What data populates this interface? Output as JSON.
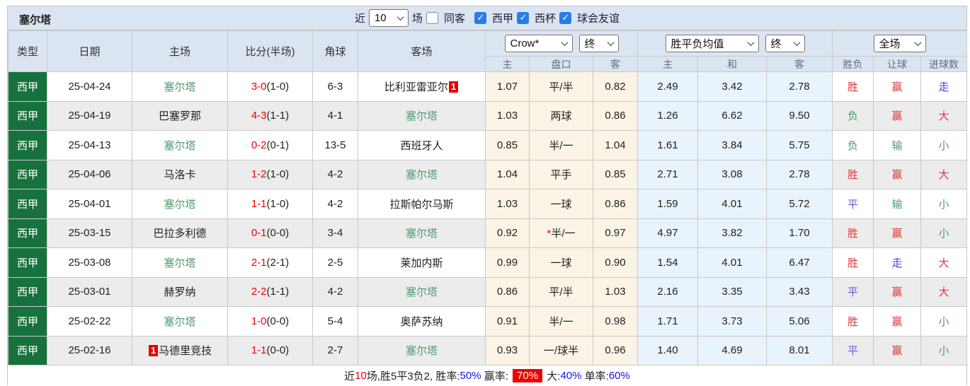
{
  "title": "塞尔塔",
  "controls": {
    "recent_label": "近",
    "recent_value": "10",
    "matches_label": "场",
    "same_venue": {
      "label": "同客",
      "checked": false
    },
    "leagues": [
      {
        "label": "西甲",
        "checked": true
      },
      {
        "label": "西杯",
        "checked": true
      },
      {
        "label": "球会友谊",
        "checked": true
      }
    ]
  },
  "selectors": {
    "odds_provider": "Crow*",
    "odds_time": "终",
    "euro_provider": "胜平负均值",
    "euro_time": "终",
    "scope": "全场"
  },
  "columns": {
    "type": "类型",
    "date": "日期",
    "home": "主场",
    "score": "比分(半场)",
    "corner": "角球",
    "away": "客场",
    "asia_home": "主",
    "asia_line": "盘口",
    "asia_away": "客",
    "euro_home": "主",
    "euro_draw": "和",
    "euro_away": "客",
    "outcome": "胜负",
    "handicap_result": "让球",
    "goals_result": "进球数"
  },
  "accent_colors": {
    "league_badge_green": "#17713c",
    "header_blue": "#dbe5f1",
    "asia_cream": "#fbf4e6",
    "euro_blue": "#e9f3fb",
    "score_red": "#ee0000",
    "celta_green": "#4e9d6e"
  },
  "rows": [
    {
      "league": "西甲",
      "date": "25-04-24",
      "home": {
        "name": "塞尔塔",
        "celta": true
      },
      "score": "3-0",
      "half": "(1-0)",
      "corner": "6-3",
      "away": {
        "name": "比利亚雷亚尔",
        "badge": "1",
        "badge_pos": "after"
      },
      "asia": {
        "home": "1.07",
        "line": "平/半",
        "star": false,
        "away": "0.82"
      },
      "euro": {
        "home": "2.49",
        "draw": "3.42",
        "away": "2.78"
      },
      "result": {
        "outcome": [
          "胜",
          "red"
        ],
        "handicap": [
          "赢",
          "red"
        ],
        "goals": [
          "走",
          "blue"
        ]
      }
    },
    {
      "league": "西甲",
      "date": "25-04-19",
      "home": {
        "name": "巴塞罗那"
      },
      "score": "4-3",
      "half": "(1-1)",
      "corner": "4-1",
      "away": {
        "name": "塞尔塔",
        "celta": true
      },
      "asia": {
        "home": "1.03",
        "line": "两球",
        "star": false,
        "away": "0.86"
      },
      "euro": {
        "home": "1.26",
        "draw": "6.62",
        "away": "9.50"
      },
      "result": {
        "outcome": [
          "负",
          "green"
        ],
        "handicap": [
          "赢",
          "red"
        ],
        "goals": [
          "大",
          "red"
        ]
      }
    },
    {
      "league": "西甲",
      "date": "25-04-13",
      "home": {
        "name": "塞尔塔",
        "celta": true
      },
      "score": "0-2",
      "half": "(0-1)",
      "corner": "13-5",
      "away": {
        "name": "西班牙人"
      },
      "asia": {
        "home": "0.85",
        "line": "半/一",
        "star": false,
        "away": "1.04"
      },
      "euro": {
        "home": "1.61",
        "draw": "3.84",
        "away": "5.75"
      },
      "result": {
        "outcome": [
          "负",
          "green"
        ],
        "handicap": [
          "输",
          "green"
        ],
        "goals": [
          "小",
          "green"
        ]
      }
    },
    {
      "league": "西甲",
      "date": "25-04-06",
      "home": {
        "name": "马洛卡"
      },
      "score": "1-2",
      "half": "(1-0)",
      "corner": "4-2",
      "away": {
        "name": "塞尔塔",
        "celta": true
      },
      "asia": {
        "home": "1.04",
        "line": "平手",
        "star": false,
        "away": "0.85"
      },
      "euro": {
        "home": "2.71",
        "draw": "3.08",
        "away": "2.78"
      },
      "result": {
        "outcome": [
          "胜",
          "red"
        ],
        "handicap": [
          "赢",
          "red"
        ],
        "goals": [
          "大",
          "red"
        ]
      }
    },
    {
      "league": "西甲",
      "date": "25-04-01",
      "home": {
        "name": "塞尔塔",
        "celta": true
      },
      "score": "1-1",
      "half": "(1-0)",
      "corner": "4-2",
      "away": {
        "name": "拉斯帕尔马斯"
      },
      "asia": {
        "home": "1.03",
        "line": "一球",
        "star": false,
        "away": "0.86"
      },
      "euro": {
        "home": "1.59",
        "draw": "4.01",
        "away": "5.72"
      },
      "result": {
        "outcome": [
          "平",
          "purple"
        ],
        "handicap": [
          "输",
          "green"
        ],
        "goals": [
          "小",
          "green"
        ]
      }
    },
    {
      "league": "西甲",
      "date": "25-03-15",
      "home": {
        "name": "巴拉多利德"
      },
      "score": "0-1",
      "half": "(0-0)",
      "corner": "3-4",
      "away": {
        "name": "塞尔塔",
        "celta": true
      },
      "asia": {
        "home": "0.92",
        "line": "半/一",
        "star": true,
        "away": "0.97"
      },
      "euro": {
        "home": "4.97",
        "draw": "3.82",
        "away": "1.70"
      },
      "result": {
        "outcome": [
          "胜",
          "red"
        ],
        "handicap": [
          "赢",
          "red"
        ],
        "goals": [
          "小",
          "green"
        ]
      }
    },
    {
      "league": "西甲",
      "date": "25-03-08",
      "home": {
        "name": "塞尔塔",
        "celta": true
      },
      "score": "2-1",
      "half": "(2-1)",
      "corner": "2-5",
      "away": {
        "name": "莱加内斯"
      },
      "asia": {
        "home": "0.99",
        "line": "一球",
        "star": false,
        "away": "0.90"
      },
      "euro": {
        "home": "1.54",
        "draw": "4.01",
        "away": "6.47"
      },
      "result": {
        "outcome": [
          "胜",
          "red"
        ],
        "handicap": [
          "走",
          "blue"
        ],
        "goals": [
          "大",
          "red"
        ]
      }
    },
    {
      "league": "西甲",
      "date": "25-03-01",
      "home": {
        "name": "赫罗纳"
      },
      "score": "2-2",
      "half": "(1-1)",
      "corner": "4-2",
      "away": {
        "name": "塞尔塔",
        "celta": true
      },
      "asia": {
        "home": "0.86",
        "line": "平/半",
        "star": false,
        "away": "1.03"
      },
      "euro": {
        "home": "2.16",
        "draw": "3.35",
        "away": "3.43"
      },
      "result": {
        "outcome": [
          "平",
          "purple"
        ],
        "handicap": [
          "赢",
          "red"
        ],
        "goals": [
          "大",
          "red"
        ]
      }
    },
    {
      "league": "西甲",
      "date": "25-02-22",
      "home": {
        "name": "塞尔塔",
        "celta": true
      },
      "score": "1-0",
      "half": "(0-0)",
      "corner": "5-4",
      "away": {
        "name": "奥萨苏纳"
      },
      "asia": {
        "home": "0.91",
        "line": "半/一",
        "star": false,
        "away": "0.98"
      },
      "euro": {
        "home": "1.71",
        "draw": "3.73",
        "away": "5.06"
      },
      "result": {
        "outcome": [
          "胜",
          "red"
        ],
        "handicap": [
          "赢",
          "red"
        ],
        "goals": [
          "小",
          "green"
        ]
      }
    },
    {
      "league": "西甲",
      "date": "25-02-16",
      "home": {
        "name": "马德里竞技",
        "badge": "1",
        "badge_pos": "before"
      },
      "score": "1-1",
      "half": "(0-0)",
      "corner": "2-7",
      "away": {
        "name": "塞尔塔",
        "celta": true
      },
      "asia": {
        "home": "0.93",
        "line": "一/球半",
        "star": false,
        "away": "0.96"
      },
      "euro": {
        "home": "1.40",
        "draw": "4.69",
        "away": "8.01"
      },
      "result": {
        "outcome": [
          "平",
          "purple"
        ],
        "handicap": [
          "赢",
          "red"
        ],
        "goals": [
          "小",
          "green"
        ]
      }
    }
  ],
  "footer_segments": [
    {
      "text": "近",
      "style": "black"
    },
    {
      "text": "10",
      "style": "red"
    },
    {
      "text": "场,胜5平3负2, 胜率:",
      "style": "black"
    },
    {
      "text": "50%",
      "style": "blue"
    },
    {
      "text": " 赢率: ",
      "style": "black"
    },
    {
      "text": "70%",
      "style": "badge"
    },
    {
      "text": " 大:",
      "style": "black"
    },
    {
      "text": "40%",
      "style": "blue"
    },
    {
      "text": " 单率:",
      "style": "black"
    },
    {
      "text": "60%",
      "style": "blue"
    }
  ]
}
